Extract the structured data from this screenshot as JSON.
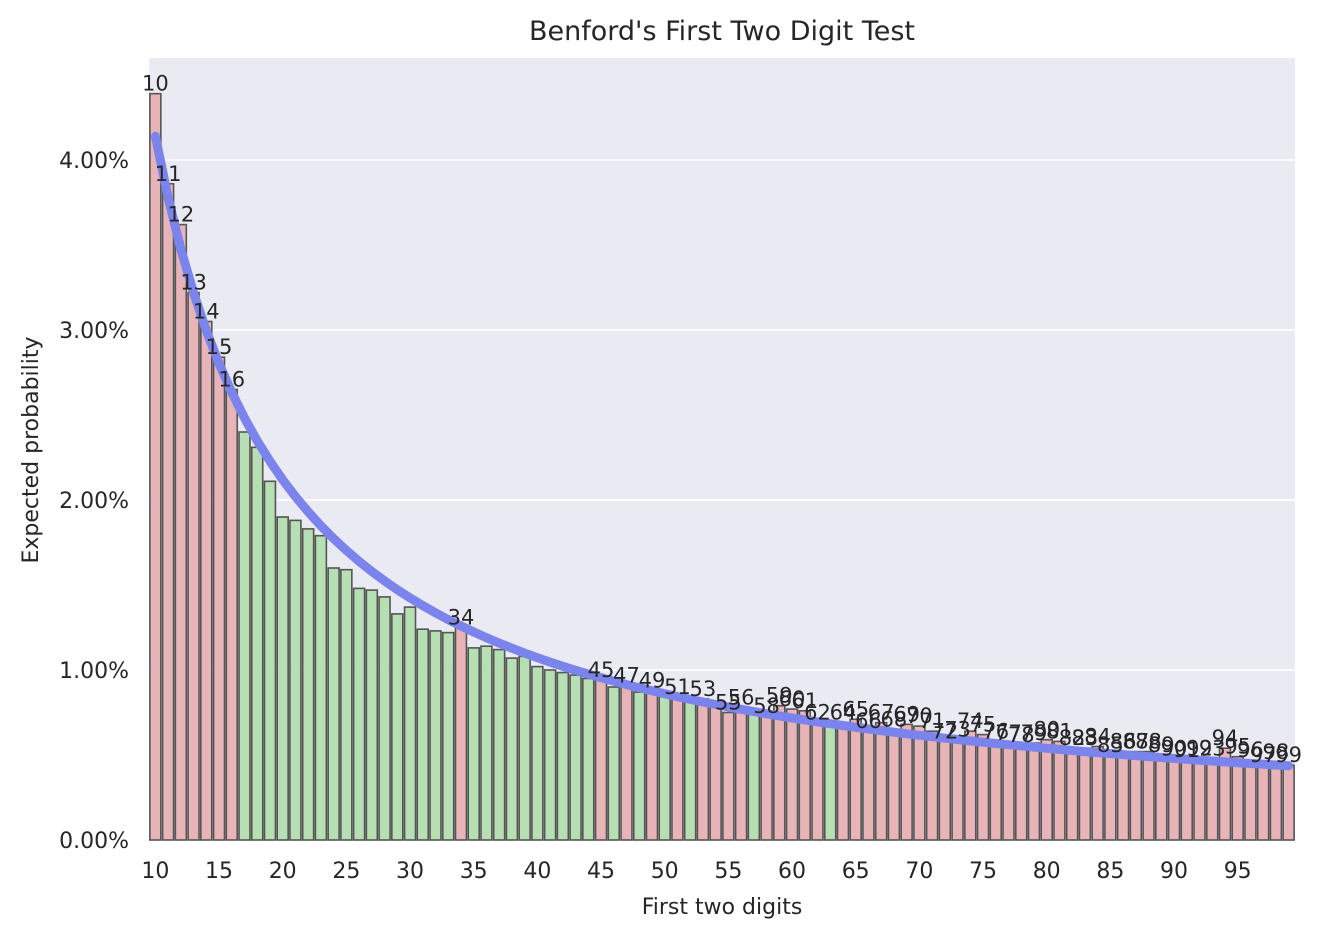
{
  "chart_data": {
    "type": "bar",
    "title": "Benford's First Two Digit Test",
    "xlabel": "First two digits",
    "ylabel": "Expected probability",
    "ylim": [
      0,
      0.046
    ],
    "yticks": [
      0,
      0.01,
      0.02,
      0.03,
      0.04
    ],
    "ytick_labels": [
      "0.00%",
      "1.00%",
      "2.00%",
      "3.00%",
      "4.00%"
    ],
    "xticks": [
      10,
      15,
      20,
      25,
      30,
      35,
      40,
      45,
      50,
      55,
      60,
      65,
      70,
      75,
      80,
      85,
      90,
      95
    ],
    "xtick_labels": [
      "10",
      "15",
      "20",
      "25",
      "30",
      "35",
      "40",
      "45",
      "50",
      "55",
      "60",
      "65",
      "70",
      "75",
      "80",
      "85",
      "90",
      "95"
    ],
    "grid": true,
    "categories": [
      10,
      11,
      12,
      13,
      14,
      15,
      16,
      17,
      18,
      19,
      20,
      21,
      22,
      23,
      24,
      25,
      26,
      27,
      28,
      29,
      30,
      31,
      32,
      33,
      34,
      35,
      36,
      37,
      38,
      39,
      40,
      41,
      42,
      43,
      44,
      45,
      46,
      47,
      48,
      49,
      50,
      51,
      52,
      53,
      54,
      55,
      56,
      57,
      58,
      59,
      60,
      61,
      62,
      63,
      64,
      65,
      66,
      67,
      68,
      69,
      70,
      71,
      72,
      73,
      74,
      75,
      76,
      77,
      78,
      79,
      80,
      81,
      82,
      83,
      84,
      85,
      86,
      87,
      88,
      89,
      90,
      91,
      92,
      93,
      94,
      95,
      96,
      97,
      98,
      99
    ],
    "series": [
      {
        "values": [
          0.0439,
          0.0386,
          0.0362,
          0.0322,
          0.0305,
          0.0284,
          0.0265,
          0.024,
          0.0231,
          0.0211,
          0.019,
          0.0188,
          0.0183,
          0.0179,
          0.016,
          0.0159,
          0.0148,
          0.0147,
          0.0143,
          0.0133,
          0.0137,
          0.0124,
          0.0123,
          0.0122,
          0.0125,
          0.0113,
          0.0114,
          0.0112,
          0.0107,
          0.0108,
          0.0102,
          0.01,
          0.00985,
          0.0097,
          0.0095,
          0.0094,
          0.009,
          0.0091,
          0.0087,
          0.0088,
          0.0085,
          0.0084,
          0.0082,
          0.0083,
          0.0079,
          0.0075,
          0.0078,
          0.0076,
          0.0073,
          0.0079,
          0.0077,
          0.0076,
          0.0069,
          0.007,
          0.0069,
          0.0071,
          0.0064,
          0.0069,
          0.0065,
          0.0068,
          0.0067,
          0.0064,
          0.0058,
          0.0059,
          0.0064,
          0.0062,
          0.0058,
          0.0057,
          0.0056,
          0.0057,
          0.0059,
          0.0058,
          0.0054,
          0.0054,
          0.0055,
          0.005,
          0.0052,
          0.0052,
          0.0052,
          0.005,
          0.0048,
          0.0047,
          0.0048,
          0.0048,
          0.0054,
          0.0049,
          0.0047,
          0.0044,
          0.0046,
          0.0044
        ],
        "status": [
          "r",
          "r",
          "r",
          "r",
          "r",
          "r",
          "r",
          "g",
          "g",
          "g",
          "g",
          "g",
          "g",
          "g",
          "g",
          "g",
          "g",
          "g",
          "g",
          "g",
          "g",
          "g",
          "g",
          "g",
          "r",
          "g",
          "g",
          "g",
          "g",
          "g",
          "g",
          "g",
          "g",
          "g",
          "g",
          "r",
          "g",
          "r",
          "g",
          "r",
          "g",
          "r",
          "g",
          "r",
          "r",
          "r",
          "r",
          "g",
          "r",
          "r",
          "r",
          "r",
          "r",
          "g",
          "r",
          "r",
          "r",
          "r",
          "r",
          "r",
          "r",
          "r",
          "r",
          "r",
          "r",
          "r",
          "r",
          "r",
          "r",
          "r",
          "r",
          "r",
          "r",
          "r",
          "r",
          "r",
          "r",
          "r",
          "r",
          "r",
          "r",
          "r",
          "r",
          "r",
          "r",
          "r",
          "r",
          "r",
          "r",
          "r"
        ]
      }
    ],
    "expected_curve": "benford-two-digit",
    "labeled_categories": [
      10,
      11,
      12,
      13,
      14,
      15,
      16,
      34,
      45,
      47,
      49,
      51,
      53,
      55,
      56,
      58,
      59,
      60,
      61,
      62,
      64,
      65,
      66,
      67,
      68,
      69,
      70,
      71,
      72,
      73,
      74,
      75,
      76,
      77,
      78,
      79,
      80,
      81,
      82,
      83,
      84,
      85,
      86,
      87,
      88,
      89,
      90,
      91,
      92,
      93,
      94,
      95,
      96,
      97,
      98,
      99
    ],
    "colors": {
      "background": "#eaeaf2",
      "grid": "#ffffff",
      "bar_red": "#e8b4b8",
      "bar_green": "#b6e0b4",
      "bar_edge": "#555555",
      "curve": "#7b84ec"
    }
  }
}
